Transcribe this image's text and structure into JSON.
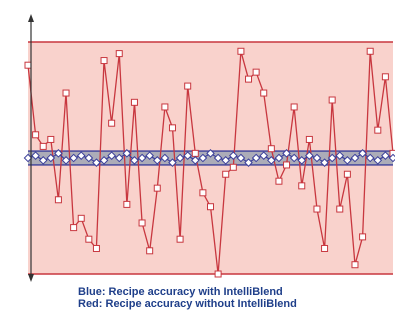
{
  "chart_data": {
    "type": "line",
    "title": "",
    "xlabel": "",
    "ylabel": "",
    "grid": false,
    "ylim": [
      0,
      100
    ],
    "legend": {
      "placement": "bottom",
      "entries": [
        "Blue: Recipe accuracy with IntelliBlend",
        "Red: Recipe accuracy without IntelliBlend"
      ]
    },
    "colors": {
      "red_band": "#f9d2cc",
      "red_line": "#c8373f",
      "blue_band": "#9fa6b4",
      "blue_line": "#3b3f9a",
      "axis": "#333333"
    },
    "red_band_range": [
      0,
      100
    ],
    "blue_band_range": [
      47,
      53
    ],
    "series": [
      {
        "name": "",
        "values": [
          90,
          60,
          55,
          58,
          32,
          78,
          20,
          24,
          15,
          11,
          92,
          65,
          95,
          30,
          74,
          22,
          10,
          37,
          72,
          63,
          15,
          81,
          52,
          35,
          29,
          0,
          43,
          46,
          96,
          84,
          87,
          78,
          54,
          40,
          47,
          72,
          38,
          58,
          28,
          11,
          75,
          28,
          43,
          4,
          16,
          96,
          62,
          85,
          52
        ]
      },
      {
        "name": "",
        "values": [
          50,
          51,
          49,
          50,
          52,
          49,
          50,
          51,
          50,
          48,
          49,
          51,
          50,
          52,
          49,
          50,
          51,
          49,
          50,
          48,
          50,
          51,
          49,
          50,
          52,
          50,
          49,
          51,
          50,
          48,
          50,
          51,
          49,
          50,
          52,
          50,
          49,
          51,
          50,
          48,
          50,
          51,
          49,
          50,
          52,
          50,
          49,
          51,
          50
        ]
      }
    ]
  }
}
